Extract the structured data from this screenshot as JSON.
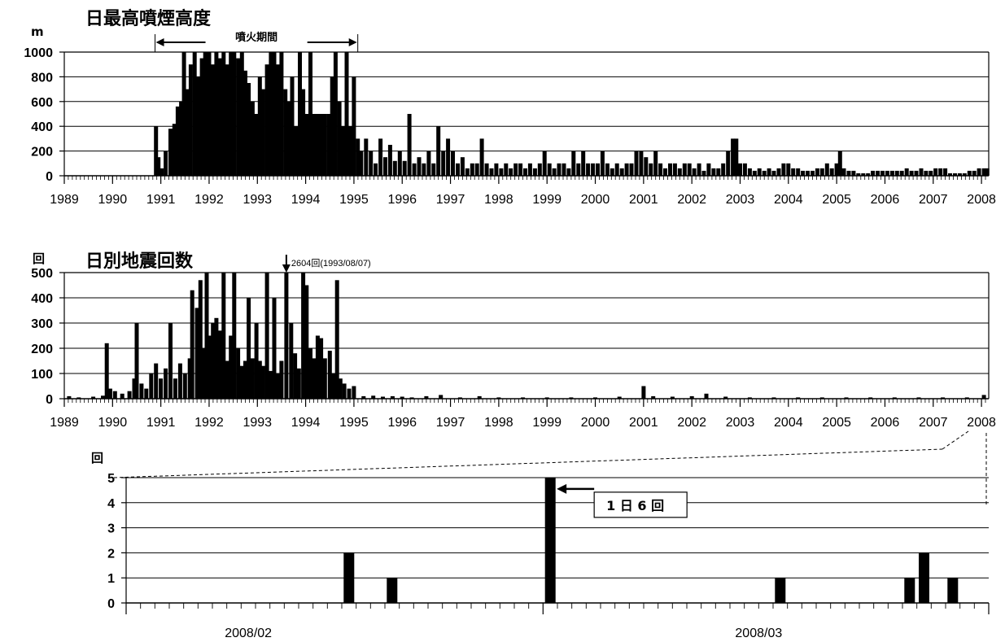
{
  "chart_data": [
    {
      "type": "bar",
      "title": "日最高噴煙高度",
      "ylabel": "m",
      "ylim": [
        0,
        1000
      ],
      "yticks": [
        0,
        200,
        400,
        600,
        800,
        1000
      ],
      "xlim": [
        1989.0,
        2008.15
      ],
      "xticks": [
        "1989",
        "1990",
        "1991",
        "1992",
        "1993",
        "1994",
        "1995",
        "1996",
        "1997",
        "1998",
        "1999",
        "2000",
        "2001",
        "2002",
        "2003",
        "2004",
        "2005",
        "2006",
        "2007",
        "2008"
      ],
      "annotation": {
        "text": "噴火期間",
        "x_start": 1990.88,
        "x_end": 1995.08
      },
      "bars": [
        [
          1990.9,
          400
        ],
        [
          1990.95,
          150
        ],
        [
          1991.02,
          60
        ],
        [
          1991.1,
          200
        ],
        [
          1991.2,
          380
        ],
        [
          1991.28,
          420
        ],
        [
          1991.35,
          560
        ],
        [
          1991.42,
          600
        ],
        [
          1991.48,
          1000
        ],
        [
          1991.55,
          700
        ],
        [
          1991.62,
          900
        ],
        [
          1991.7,
          1000
        ],
        [
          1991.78,
          800
        ],
        [
          1991.85,
          950
        ],
        [
          1991.92,
          1000
        ],
        [
          1992.0,
          1000
        ],
        [
          1992.08,
          900
        ],
        [
          1992.15,
          1000
        ],
        [
          1992.22,
          950
        ],
        [
          1992.3,
          1000
        ],
        [
          1992.38,
          900
        ],
        [
          1992.45,
          1000
        ],
        [
          1992.52,
          1000
        ],
        [
          1992.6,
          950
        ],
        [
          1992.68,
          1000
        ],
        [
          1992.75,
          850
        ],
        [
          1992.82,
          750
        ],
        [
          1992.9,
          600
        ],
        [
          1992.97,
          500
        ],
        [
          1993.05,
          800
        ],
        [
          1993.12,
          700
        ],
        [
          1993.2,
          900
        ],
        [
          1993.28,
          1000
        ],
        [
          1993.35,
          1000
        ],
        [
          1993.42,
          900
        ],
        [
          1993.5,
          1000
        ],
        [
          1993.58,
          700
        ],
        [
          1993.65,
          600
        ],
        [
          1993.72,
          800
        ],
        [
          1993.8,
          400
        ],
        [
          1993.88,
          1000
        ],
        [
          1993.95,
          700
        ],
        [
          1994.02,
          500
        ],
        [
          1994.1,
          1000
        ],
        [
          1994.18,
          500
        ],
        [
          1994.25,
          500
        ],
        [
          1994.32,
          500
        ],
        [
          1994.4,
          500
        ],
        [
          1994.48,
          500
        ],
        [
          1994.55,
          800
        ],
        [
          1994.62,
          1000
        ],
        [
          1994.7,
          600
        ],
        [
          1994.78,
          400
        ],
        [
          1994.85,
          1000
        ],
        [
          1994.92,
          400
        ],
        [
          1995.0,
          800
        ],
        [
          1995.08,
          300
        ],
        [
          1995.15,
          200
        ],
        [
          1995.25,
          300
        ],
        [
          1995.35,
          200
        ],
        [
          1995.45,
          100
        ],
        [
          1995.55,
          300
        ],
        [
          1995.65,
          150
        ],
        [
          1995.75,
          250
        ],
        [
          1995.85,
          120
        ],
        [
          1995.95,
          200
        ],
        [
          1996.05,
          120
        ],
        [
          1996.15,
          500
        ],
        [
          1996.25,
          100
        ],
        [
          1996.35,
          150
        ],
        [
          1996.45,
          100
        ],
        [
          1996.55,
          200
        ],
        [
          1996.65,
          100
        ],
        [
          1996.75,
          400
        ],
        [
          1996.85,
          200
        ],
        [
          1996.95,
          300
        ],
        [
          1997.05,
          200
        ],
        [
          1997.15,
          100
        ],
        [
          1997.25,
          150
        ],
        [
          1997.35,
          60
        ],
        [
          1997.45,
          100
        ],
        [
          1997.55,
          100
        ],
        [
          1997.65,
          300
        ],
        [
          1997.75,
          100
        ],
        [
          1997.85,
          60
        ],
        [
          1997.95,
          100
        ],
        [
          1998.05,
          60
        ],
        [
          1998.15,
          100
        ],
        [
          1998.25,
          60
        ],
        [
          1998.35,
          100
        ],
        [
          1998.45,
          100
        ],
        [
          1998.55,
          60
        ],
        [
          1998.65,
          100
        ],
        [
          1998.75,
          60
        ],
        [
          1998.85,
          100
        ],
        [
          1998.95,
          200
        ],
        [
          1999.05,
          100
        ],
        [
          1999.15,
          60
        ],
        [
          1999.25,
          100
        ],
        [
          1999.35,
          100
        ],
        [
          1999.45,
          60
        ],
        [
          1999.55,
          200
        ],
        [
          1999.65,
          100
        ],
        [
          1999.75,
          200
        ],
        [
          1999.85,
          100
        ],
        [
          1999.95,
          100
        ],
        [
          2000.05,
          100
        ],
        [
          2000.15,
          200
        ],
        [
          2000.25,
          100
        ],
        [
          2000.35,
          60
        ],
        [
          2000.45,
          100
        ],
        [
          2000.55,
          60
        ],
        [
          2000.65,
          100
        ],
        [
          2000.75,
          100
        ],
        [
          2000.85,
          200
        ],
        [
          2000.95,
          200
        ],
        [
          2001.05,
          150
        ],
        [
          2001.15,
          100
        ],
        [
          2001.25,
          200
        ],
        [
          2001.35,
          100
        ],
        [
          2001.45,
          60
        ],
        [
          2001.55,
          100
        ],
        [
          2001.65,
          100
        ],
        [
          2001.75,
          60
        ],
        [
          2001.85,
          100
        ],
        [
          2001.95,
          100
        ],
        [
          2002.05,
          60
        ],
        [
          2002.15,
          100
        ],
        [
          2002.25,
          40
        ],
        [
          2002.35,
          100
        ],
        [
          2002.45,
          60
        ],
        [
          2002.55,
          60
        ],
        [
          2002.65,
          100
        ],
        [
          2002.75,
          200
        ],
        [
          2002.85,
          300
        ],
        [
          2002.92,
          300
        ],
        [
          2003.0,
          100
        ],
        [
          2003.1,
          100
        ],
        [
          2003.2,
          60
        ],
        [
          2003.3,
          40
        ],
        [
          2003.4,
          60
        ],
        [
          2003.5,
          40
        ],
        [
          2003.6,
          60
        ],
        [
          2003.7,
          40
        ],
        [
          2003.8,
          60
        ],
        [
          2003.9,
          100
        ],
        [
          2004.0,
          100
        ],
        [
          2004.1,
          60
        ],
        [
          2004.2,
          60
        ],
        [
          2004.3,
          40
        ],
        [
          2004.4,
          40
        ],
        [
          2004.5,
          40
        ],
        [
          2004.6,
          60
        ],
        [
          2004.7,
          60
        ],
        [
          2004.8,
          100
        ],
        [
          2004.9,
          60
        ],
        [
          2005.0,
          100
        ],
        [
          2005.07,
          200
        ],
        [
          2005.15,
          60
        ],
        [
          2005.25,
          40
        ],
        [
          2005.35,
          40
        ],
        [
          2005.45,
          20
        ],
        [
          2005.55,
          20
        ],
        [
          2005.65,
          20
        ],
        [
          2005.75,
          40
        ],
        [
          2005.85,
          40
        ],
        [
          2005.95,
          40
        ],
        [
          2006.05,
          40
        ],
        [
          2006.15,
          40
        ],
        [
          2006.25,
          40
        ],
        [
          2006.35,
          40
        ],
        [
          2006.45,
          60
        ],
        [
          2006.55,
          40
        ],
        [
          2006.65,
          40
        ],
        [
          2006.75,
          60
        ],
        [
          2006.85,
          40
        ],
        [
          2006.95,
          40
        ],
        [
          2007.05,
          60
        ],
        [
          2007.15,
          60
        ],
        [
          2007.25,
          60
        ],
        [
          2007.35,
          20
        ],
        [
          2007.45,
          20
        ],
        [
          2007.55,
          20
        ],
        [
          2007.65,
          20
        ],
        [
          2007.75,
          40
        ],
        [
          2007.85,
          40
        ],
        [
          2007.95,
          60
        ],
        [
          2008.05,
          60
        ],
        [
          2008.12,
          60
        ]
      ]
    },
    {
      "type": "bar",
      "title": "日別地震回数",
      "ylabel": "回",
      "ylim": [
        0,
        500
      ],
      "yticks": [
        0,
        100,
        200,
        300,
        400,
        500
      ],
      "xlim": [
        1989.0,
        2008.15
      ],
      "xticks": [
        "1989",
        "1990",
        "1991",
        "1992",
        "1993",
        "1994",
        "1995",
        "1996",
        "1997",
        "1998",
        "1999",
        "2000",
        "2001",
        "2002",
        "2003",
        "2004",
        "2005",
        "2006",
        "2007",
        "2008"
      ],
      "annotation": {
        "text": "2604回(1993/08/07)",
        "x": 1993.6
      },
      "bars": [
        [
          1989.1,
          10
        ],
        [
          1989.3,
          5
        ],
        [
          1989.6,
          8
        ],
        [
          1989.8,
          12
        ],
        [
          1989.88,
          220
        ],
        [
          1989.95,
          40
        ],
        [
          1990.05,
          30
        ],
        [
          1990.2,
          20
        ],
        [
          1990.35,
          30
        ],
        [
          1990.45,
          80
        ],
        [
          1990.5,
          300
        ],
        [
          1990.6,
          60
        ],
        [
          1990.7,
          40
        ],
        [
          1990.8,
          100
        ],
        [
          1990.9,
          140
        ],
        [
          1991.0,
          80
        ],
        [
          1991.1,
          120
        ],
        [
          1991.2,
          300
        ],
        [
          1991.3,
          80
        ],
        [
          1991.4,
          140
        ],
        [
          1991.5,
          100
        ],
        [
          1991.6,
          160
        ],
        [
          1991.65,
          430
        ],
        [
          1991.75,
          360
        ],
        [
          1991.82,
          470
        ],
        [
          1991.9,
          200
        ],
        [
          1991.95,
          500
        ],
        [
          1992.02,
          250
        ],
        [
          1992.08,
          300
        ],
        [
          1992.15,
          320
        ],
        [
          1992.22,
          270
        ],
        [
          1992.3,
          500
        ],
        [
          1992.38,
          150
        ],
        [
          1992.45,
          250
        ],
        [
          1992.52,
          500
        ],
        [
          1992.6,
          200
        ],
        [
          1992.68,
          130
        ],
        [
          1992.75,
          150
        ],
        [
          1992.82,
          400
        ],
        [
          1992.9,
          160
        ],
        [
          1992.98,
          300
        ],
        [
          1993.05,
          150
        ],
        [
          1993.12,
          130
        ],
        [
          1993.2,
          500
        ],
        [
          1993.28,
          110
        ],
        [
          1993.35,
          400
        ],
        [
          1993.42,
          100
        ],
        [
          1993.5,
          150
        ],
        [
          1993.6,
          500
        ],
        [
          1993.7,
          300
        ],
        [
          1993.78,
          180
        ],
        [
          1993.86,
          120
        ],
        [
          1993.95,
          500
        ],
        [
          1994.02,
          450
        ],
        [
          1994.1,
          200
        ],
        [
          1994.18,
          160
        ],
        [
          1994.25,
          250
        ],
        [
          1994.32,
          240
        ],
        [
          1994.4,
          160
        ],
        [
          1994.5,
          190
        ],
        [
          1994.58,
          100
        ],
        [
          1994.65,
          470
        ],
        [
          1994.72,
          80
        ],
        [
          1994.8,
          60
        ],
        [
          1994.9,
          40
        ],
        [
          1995.0,
          50
        ],
        [
          1995.2,
          10
        ],
        [
          1995.4,
          12
        ],
        [
          1995.6,
          8
        ],
        [
          1995.8,
          10
        ],
        [
          1996.0,
          8
        ],
        [
          1996.2,
          5
        ],
        [
          1996.5,
          10
        ],
        [
          1996.8,
          15
        ],
        [
          1997.2,
          5
        ],
        [
          1997.6,
          10
        ],
        [
          1998.0,
          5
        ],
        [
          1998.5,
          5
        ],
        [
          1999.0,
          5
        ],
        [
          1999.5,
          5
        ],
        [
          2000.0,
          5
        ],
        [
          2000.5,
          8
        ],
        [
          2001.0,
          50
        ],
        [
          2001.2,
          10
        ],
        [
          2001.6,
          8
        ],
        [
          2002.0,
          10
        ],
        [
          2002.3,
          20
        ],
        [
          2002.7,
          8
        ],
        [
          2003.2,
          5
        ],
        [
          2003.7,
          5
        ],
        [
          2004.2,
          5
        ],
        [
          2004.7,
          5
        ],
        [
          2005.2,
          5
        ],
        [
          2005.7,
          5
        ],
        [
          2006.2,
          5
        ],
        [
          2006.7,
          5
        ],
        [
          2007.2,
          5
        ],
        [
          2007.7,
          5
        ],
        [
          2008.05,
          15
        ]
      ]
    },
    {
      "type": "bar",
      "title": "",
      "ylabel": "回",
      "ylim": [
        0,
        5
      ],
      "yticks": [
        0,
        1,
        2,
        3,
        4,
        5
      ],
      "x_day_range": [
        0,
        60
      ],
      "xticks": [
        {
          "label": "2008/02",
          "day": 8.5
        },
        {
          "label": "2008/03",
          "day": 44
        }
      ],
      "callout": {
        "text": "1 日 6 回",
        "day": 29.5
      },
      "bars": [
        [
          15.5,
          2
        ],
        [
          18.5,
          1
        ],
        [
          29.5,
          5
        ],
        [
          45.5,
          1
        ],
        [
          54.5,
          1
        ],
        [
          55.5,
          2
        ],
        [
          57.5,
          1
        ]
      ]
    }
  ]
}
